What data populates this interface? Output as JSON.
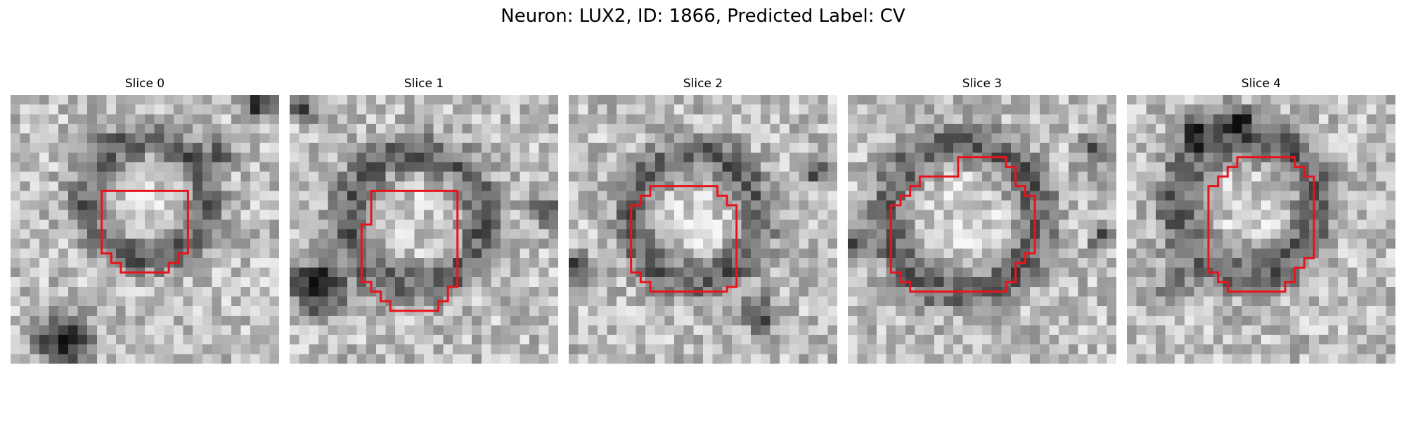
{
  "figure": {
    "title": "Neuron: LUX2, ID: 1866, Predicted Label: CV"
  },
  "image_style": {
    "colormap": "grayscale",
    "roi_outline_color": "#e8141c"
  },
  "panels": [
    {
      "title": "Slice 0"
    },
    {
      "title": "Slice 1"
    },
    {
      "title": "Slice 2"
    },
    {
      "title": "Slice 3"
    },
    {
      "title": "Slice 4"
    }
  ]
}
